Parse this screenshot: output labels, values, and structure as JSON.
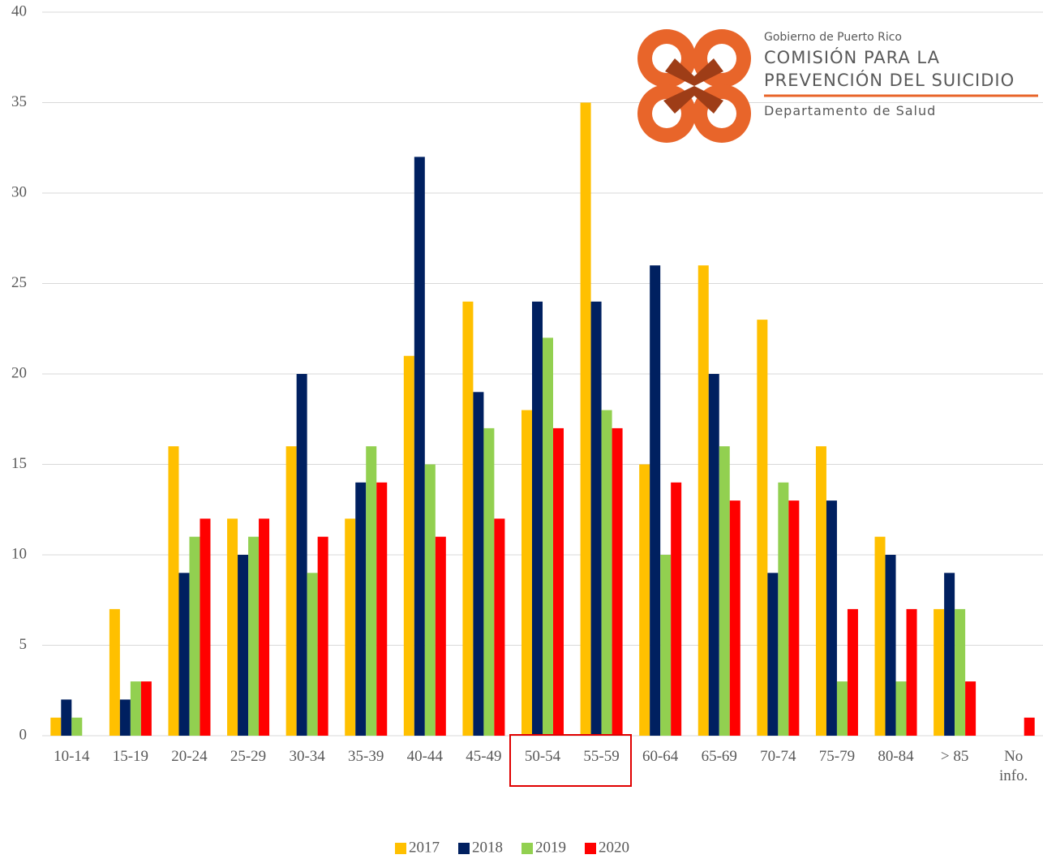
{
  "chart_data": {
    "type": "bar",
    "categories": [
      "10-14",
      "15-19",
      "20-24",
      "25-29",
      "30-34",
      "35-39",
      "40-44",
      "45-49",
      "50-54",
      "55-59",
      "60-64",
      "65-69",
      "70-74",
      "75-79",
      "80-84",
      "> 85",
      "No info."
    ],
    "series": [
      {
        "name": "2017",
        "color": "#FFC000",
        "values": [
          1,
          7,
          16,
          12,
          16,
          12,
          21,
          24,
          18,
          35,
          15,
          26,
          23,
          16,
          11,
          7,
          0
        ]
      },
      {
        "name": "2018",
        "color": "#002060",
        "values": [
          2,
          2,
          9,
          10,
          20,
          14,
          32,
          19,
          24,
          24,
          26,
          20,
          9,
          13,
          10,
          9,
          0
        ]
      },
      {
        "name": "2019",
        "color": "#92D050",
        "values": [
          1,
          3,
          11,
          11,
          9,
          16,
          15,
          17,
          22,
          18,
          10,
          16,
          14,
          3,
          3,
          7,
          0
        ]
      },
      {
        "name": "2020",
        "color": "#FF0000",
        "values": [
          0,
          3,
          12,
          12,
          11,
          14,
          11,
          12,
          17,
          17,
          14,
          13,
          13,
          7,
          7,
          3,
          1
        ]
      }
    ],
    "ylim": [
      0,
      40
    ],
    "yticks": [
      0,
      5,
      10,
      15,
      20,
      25,
      30,
      35,
      40
    ],
    "grid": true,
    "legend": "bottom",
    "logo": {
      "line1": "Gobierno de Puerto Rico",
      "line2": "COMISIÓN PARA LA",
      "line3": "PREVENCIÓN DEL SUICIDIO",
      "line4": "Departamento de Salud"
    }
  }
}
